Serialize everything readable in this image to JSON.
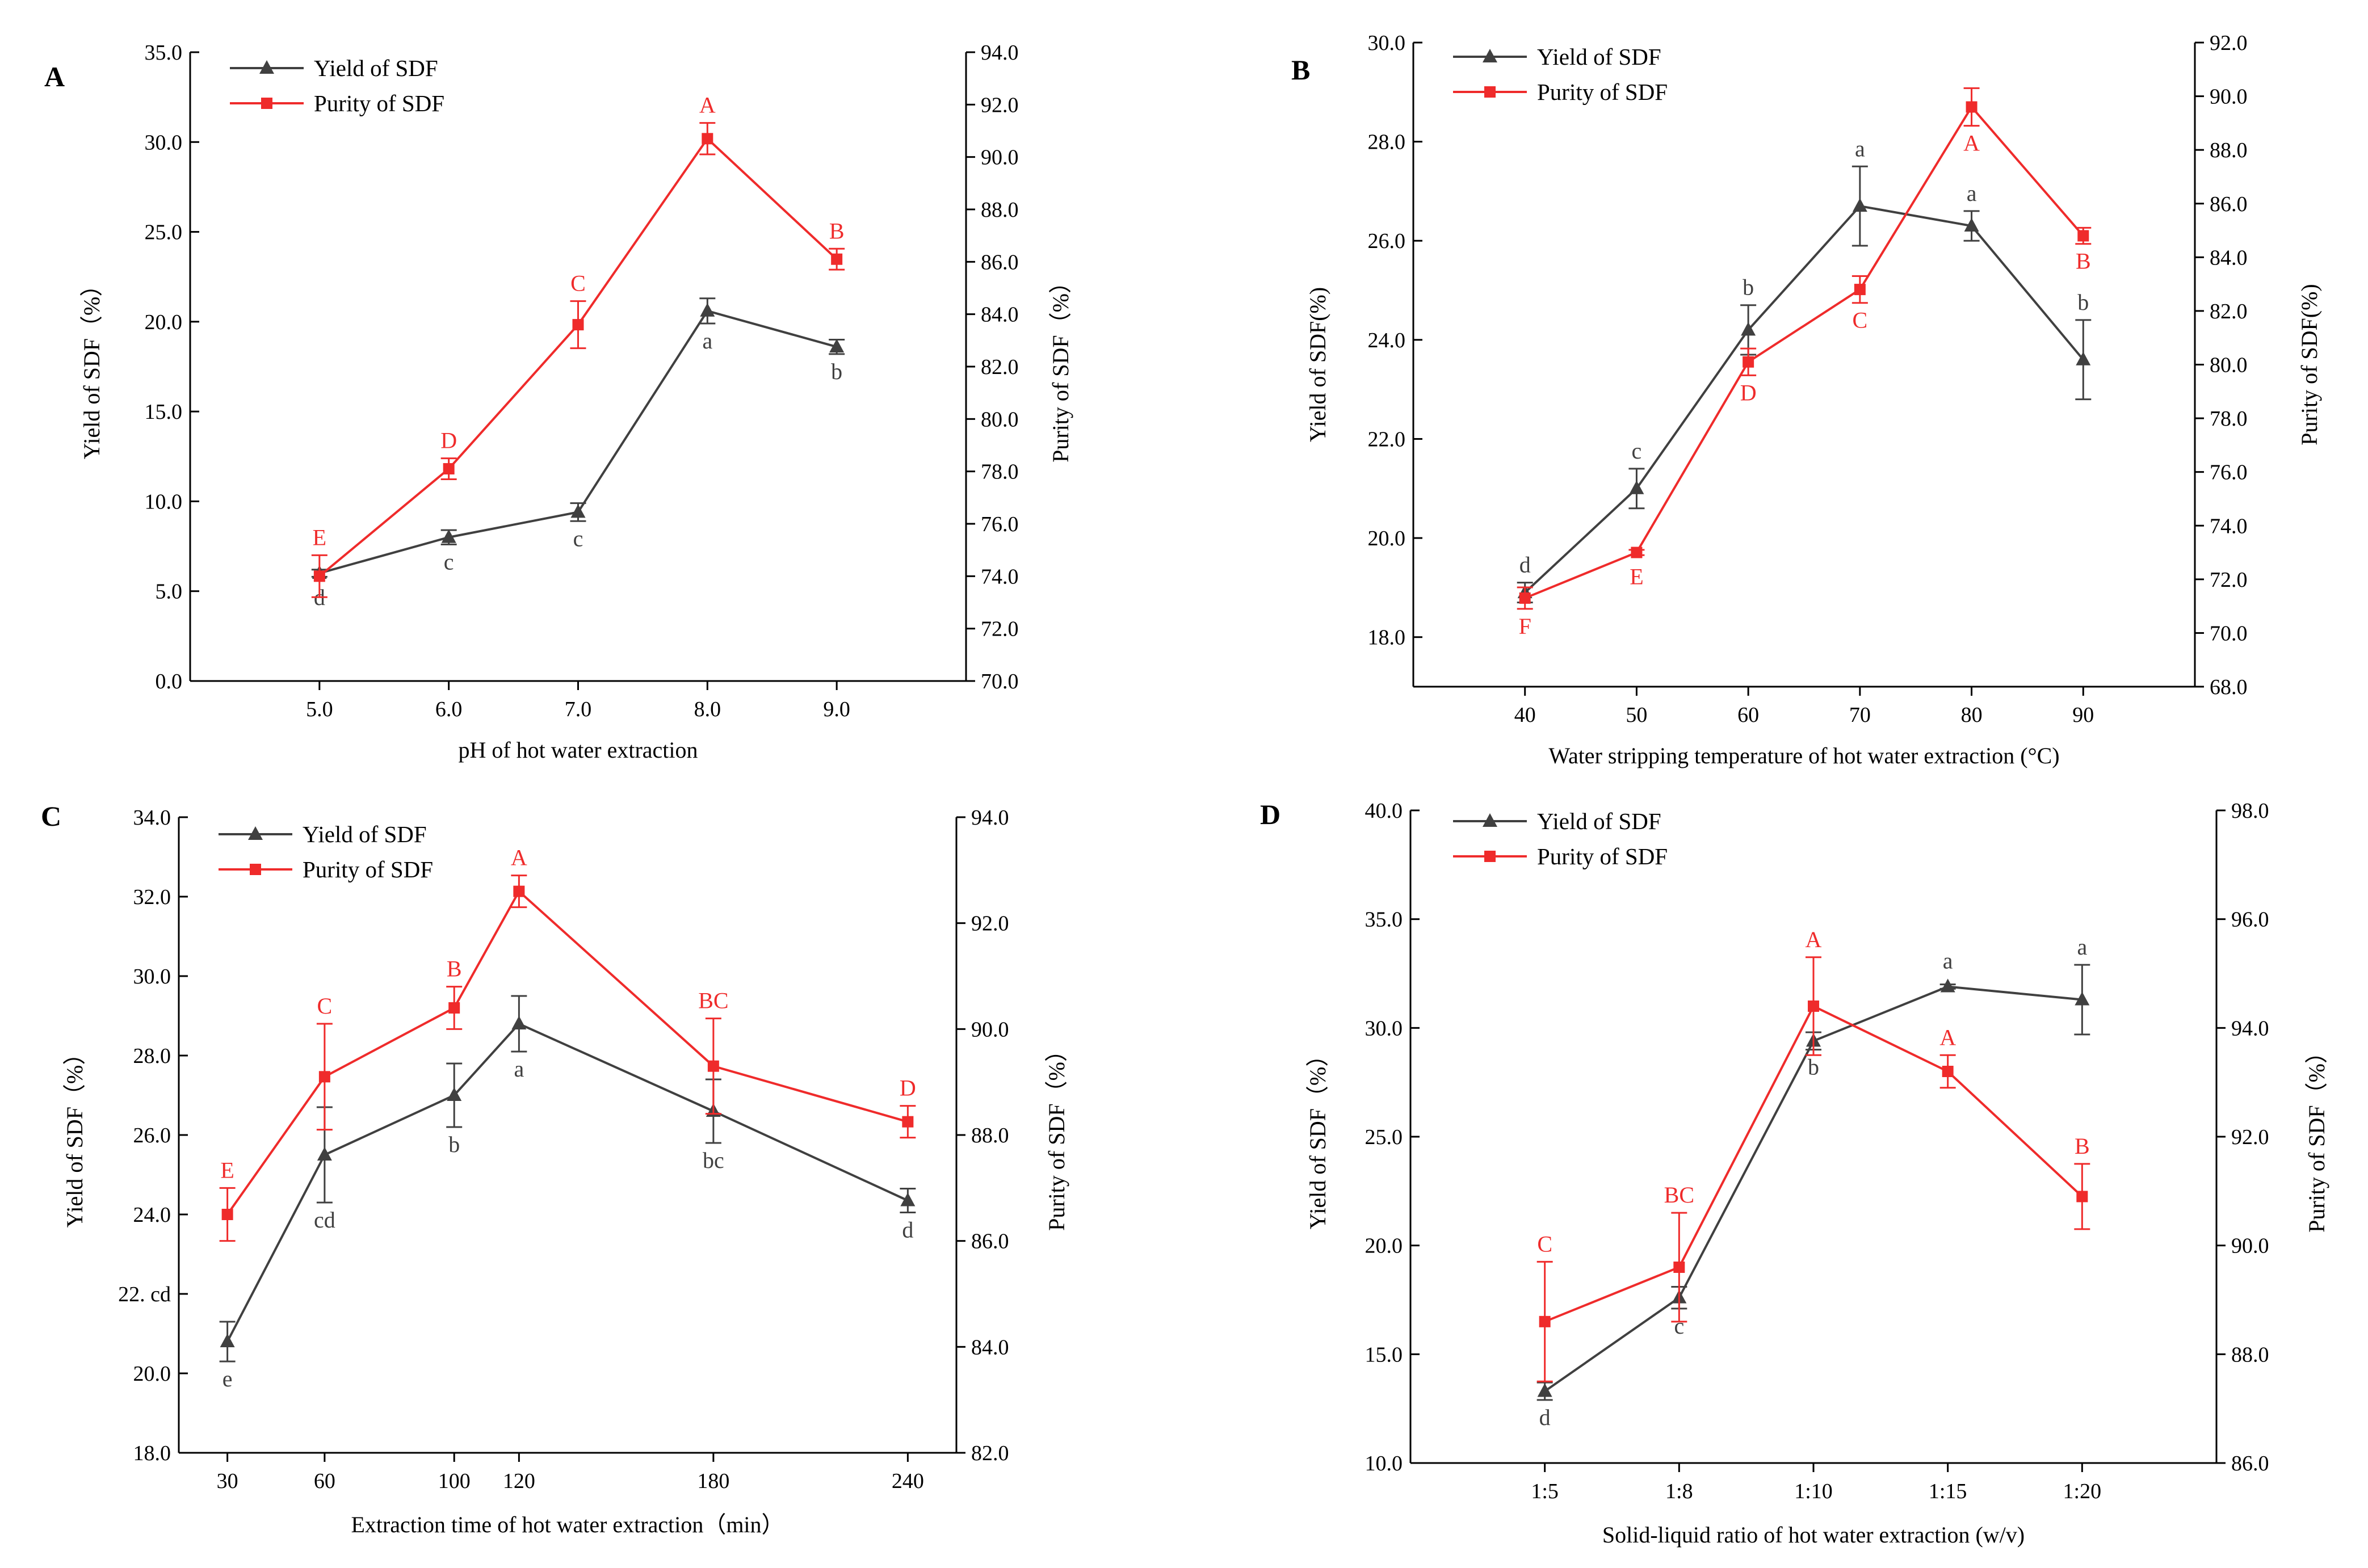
{
  "colors": {
    "yield": "#404040",
    "purity": "#ef2b2b",
    "axis": "#000000"
  },
  "chart_data": [
    {
      "type": "line",
      "panel": "A",
      "x_mode": "categorical",
      "categories": [
        "5.0",
        "6.0",
        "7.0",
        "8.0",
        "9.0"
      ],
      "xlabel": "pH of hot water extraction",
      "ylabel_left": "Yield of SDF（%）",
      "ylabel_right": "Purity of SDF（%）",
      "ylim_left": [
        0,
        35
      ],
      "ylim_right": [
        70,
        94
      ],
      "yticks_left": [
        "0.0",
        "5.0",
        "10.0",
        "15.0",
        "20.0",
        "25.0",
        "30.0",
        "35.0"
      ],
      "yticks_right": [
        "70.0",
        "72.0",
        "74.0",
        "76.0",
        "78.0",
        "80.0",
        "82.0",
        "84.0",
        "86.0",
        "88.0",
        "90.0",
        "92.0",
        "94.0"
      ],
      "legend": [
        "Yield of SDF",
        "Purity of SDF"
      ],
      "legend_position": "top-left",
      "series": [
        {
          "name": "Yield of SDF",
          "axis": "left",
          "marker": "triangle",
          "values": [
            6.0,
            8.0,
            9.4,
            20.6,
            18.6
          ],
          "errors": [
            0.2,
            0.4,
            0.5,
            0.7,
            0.4
          ],
          "labels": [
            "d",
            "c",
            "c",
            "a",
            "b"
          ],
          "label_side": [
            "below",
            "below",
            "below",
            "below",
            "below"
          ]
        },
        {
          "name": "Purity of SDF",
          "axis": "right",
          "marker": "square",
          "values": [
            74.0,
            78.1,
            83.6,
            90.7,
            86.1
          ],
          "errors": [
            0.8,
            0.4,
            0.9,
            0.6,
            0.4
          ],
          "labels": [
            "E",
            "D",
            "C",
            "A",
            "B"
          ],
          "label_side": [
            "above",
            "above",
            "above",
            "above",
            "above"
          ]
        }
      ]
    },
    {
      "type": "line",
      "panel": "B",
      "x_mode": "categorical",
      "categories": [
        "40",
        "50",
        "60",
        "70",
        "80",
        "90"
      ],
      "xlabel": "Water stripping temperature of hot water extraction (°C)",
      "ylabel_left": "Yield of SDF(%)",
      "ylabel_right": "Purity of SDF(%)",
      "ylim_left": [
        17,
        30
      ],
      "ylim_right": [
        68,
        92
      ],
      "yticks_left": [
        "18.0",
        "20.0",
        "22.0",
        "24.0",
        "26.0",
        "28.0",
        "30.0"
      ],
      "yticks_right": [
        "68.0",
        "70.0",
        "72.0",
        "74.0",
        "76.0",
        "78.0",
        "80.0",
        "82.0",
        "84.0",
        "86.0",
        "88.0",
        "90.0",
        "92.0"
      ],
      "legend": [
        "Yield of SDF",
        "Purity of SDF"
      ],
      "legend_position": "top-left",
      "series": [
        {
          "name": "Yield of SDF",
          "axis": "left",
          "marker": "triangle",
          "values": [
            18.9,
            21.0,
            24.2,
            26.7,
            26.3,
            23.6
          ],
          "errors": [
            0.2,
            0.4,
            0.5,
            0.8,
            0.3,
            0.8
          ],
          "labels": [
            "d",
            "c",
            "b",
            "a",
            "a",
            "b"
          ],
          "label_side": [
            "above",
            "above",
            "above",
            "above",
            "above",
            "above"
          ]
        },
        {
          "name": "Purity of SDF",
          "axis": "right",
          "marker": "square",
          "values": [
            71.3,
            73.0,
            80.1,
            82.8,
            89.6,
            84.8
          ],
          "errors": [
            0.4,
            0.1,
            0.5,
            0.5,
            0.7,
            0.3
          ],
          "labels": [
            "F",
            "E",
            "D",
            "C",
            "A",
            "B"
          ],
          "label_side": [
            "below",
            "below",
            "below",
            "below",
            "below",
            "below"
          ]
        }
      ]
    },
    {
      "type": "line",
      "panel": "C",
      "x_mode": "numeric",
      "x": [
        30,
        60,
        100,
        120,
        180,
        240
      ],
      "xticks": [
        30,
        60,
        100,
        120,
        180,
        240
      ],
      "xlim": [
        15,
        255
      ],
      "xlabel": "Extraction time of hot water extraction（min）",
      "ylabel_left": "Yield of SDF（%）",
      "ylabel_right": "Purity of SDF（%）",
      "ylim_left": [
        18,
        34
      ],
      "ylim_right": [
        82,
        94
      ],
      "yticks_left": [
        "18.0",
        "20.0",
        "22.0",
        "24.0",
        "26.0",
        "28.0",
        "30.0",
        "32.0",
        "34.0"
      ],
      "yticks_left_overrides": {
        "22.0": "22. cd"
      },
      "yticks_right": [
        "82.0",
        "84.0",
        "86.0",
        "88.0",
        "90.0",
        "92.0",
        "94.0"
      ],
      "legend": [
        "Yield of SDF",
        "Purity of SDF"
      ],
      "legend_position": "top-left",
      "series": [
        {
          "name": "Yield of SDF",
          "axis": "left",
          "marker": "triangle",
          "values": [
            20.8,
            25.5,
            27.0,
            28.8,
            26.6,
            24.35
          ],
          "errors": [
            0.5,
            1.2,
            0.8,
            0.7,
            0.8,
            0.3
          ],
          "labels": [
            "e",
            "cd",
            "b",
            "a",
            "bc",
            "d"
          ],
          "label_side": [
            "below",
            "below",
            "below",
            "below",
            "below",
            "below"
          ]
        },
        {
          "name": "Purity of SDF",
          "axis": "right",
          "marker": "square",
          "values": [
            86.5,
            89.1,
            90.4,
            92.6,
            89.3,
            88.25
          ],
          "errors": [
            0.5,
            1.0,
            0.4,
            0.3,
            0.9,
            0.3
          ],
          "labels": [
            "E",
            "C",
            "B",
            "A",
            "BC",
            "D"
          ],
          "label_side": [
            "above",
            "above",
            "above",
            "above",
            "above",
            "above"
          ]
        }
      ]
    },
    {
      "type": "line",
      "panel": "D",
      "x_mode": "categorical",
      "categories": [
        "1:5",
        "1:8",
        "1:10",
        "1:15",
        "1:20"
      ],
      "xlabel": "Solid-liquid ratio of hot water extraction (w/v)",
      "ylabel_left": "Yield of SDF（%）",
      "ylabel_right": "Purity of SDF（%）",
      "ylim_left": [
        10,
        40
      ],
      "ylim_right": [
        86,
        98
      ],
      "yticks_left": [
        "10.0",
        "15.0",
        "20.0",
        "25.0",
        "30.0",
        "35.0",
        "40.0"
      ],
      "yticks_right": [
        "86.0",
        "88.0",
        "90.0",
        "92.0",
        "94.0",
        "96.0",
        "98.0"
      ],
      "legend": [
        "Yield of SDF",
        "Purity of SDF"
      ],
      "legend_position": "top-left",
      "series": [
        {
          "name": "Yield of SDF",
          "axis": "left",
          "marker": "triangle",
          "values": [
            13.3,
            17.6,
            29.4,
            31.9,
            31.3
          ],
          "errors": [
            0.4,
            0.5,
            0.4,
            0.1,
            1.6
          ],
          "labels": [
            "d",
            "c",
            "b",
            "a",
            "a"
          ],
          "label_side": [
            "below",
            "below",
            "below",
            "above",
            "above"
          ]
        },
        {
          "name": "Purity of SDF",
          "axis": "right",
          "marker": "square",
          "values": [
            88.6,
            89.6,
            94.4,
            93.2,
            90.9
          ],
          "errors": [
            1.1,
            1.0,
            0.9,
            0.3,
            0.6
          ],
          "labels": [
            "C",
            "BC",
            "A",
            "A",
            "B"
          ],
          "label_side": [
            "above",
            "above",
            "above",
            "above",
            "above"
          ]
        }
      ]
    }
  ]
}
